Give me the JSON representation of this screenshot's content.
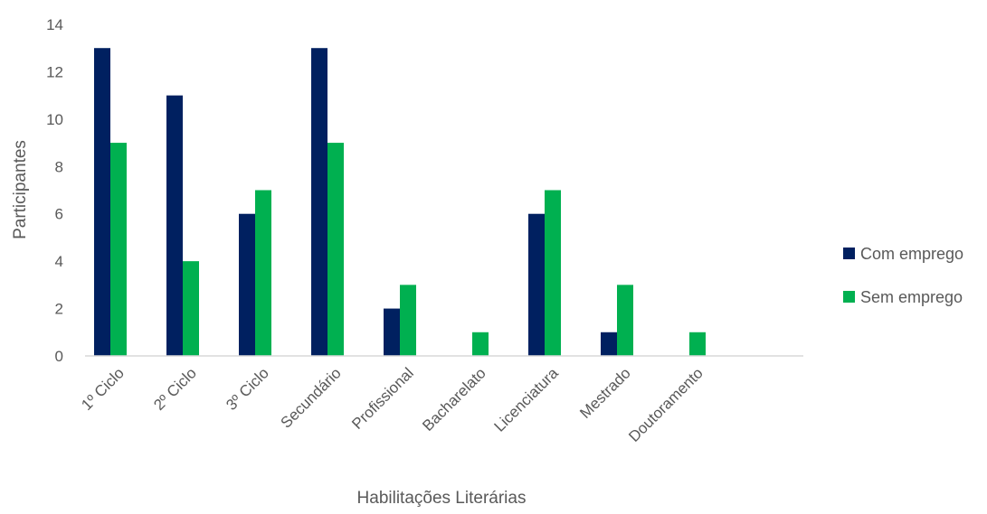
{
  "chart_data": {
    "type": "bar",
    "title": "",
    "xlabel": "Habilitações Literárias",
    "ylabel": "Participantes",
    "ylim": [
      0,
      14
    ],
    "yticks": [
      0,
      2,
      4,
      6,
      8,
      10,
      12,
      14
    ],
    "grid": false,
    "legend_position": "right",
    "categories": [
      "1º Ciclo",
      "2º Ciclo",
      "3º Ciclo",
      "Secundário",
      "Profissional",
      "Bacharelato",
      "Licenciatura",
      "Mestrado",
      "Doutoramento"
    ],
    "series": [
      {
        "name": "Com emprego",
        "color": "#002060",
        "values": [
          13,
          11,
          6,
          13,
          2,
          0,
          6,
          1,
          0
        ]
      },
      {
        "name": "Sem emprego",
        "color": "#00B050",
        "values": [
          9,
          4,
          7,
          9,
          3,
          1,
          7,
          3,
          1
        ]
      }
    ]
  }
}
